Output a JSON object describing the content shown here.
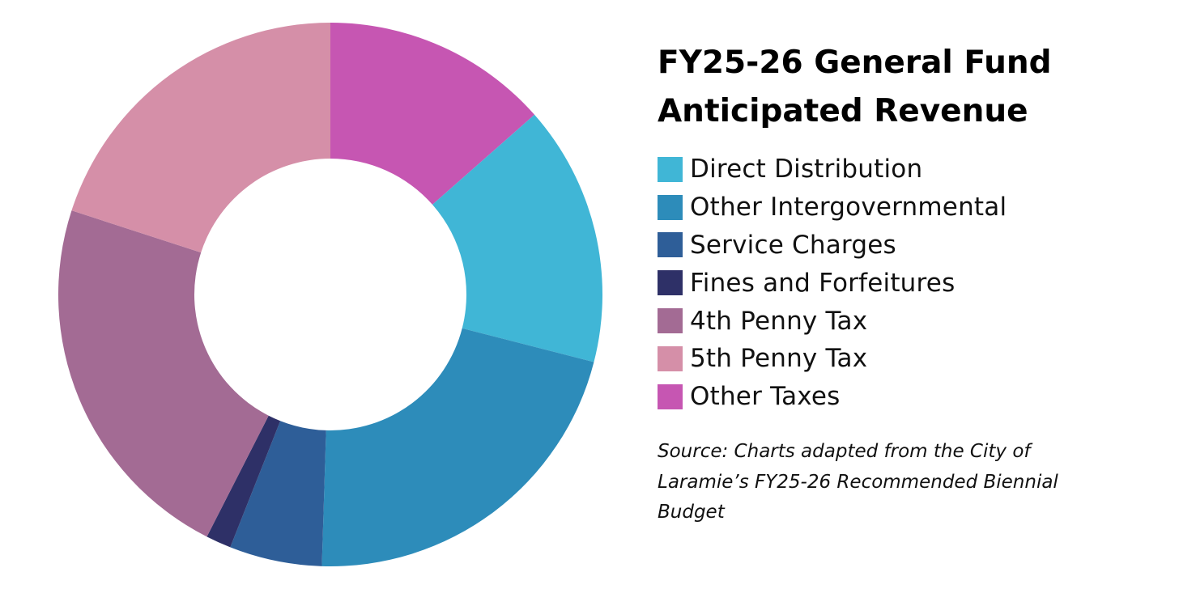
{
  "chart_data": {
    "type": "pie",
    "variant": "donut",
    "title": "FY25-26 General Fund Anticipated Revenue",
    "categories": [
      "Other Taxes",
      "Direct Distribution",
      "Other Intergovernmental",
      "Service Charges",
      "Fines and Forfeitures",
      "4th Penny Tax",
      "5th Penny Tax"
    ],
    "values": [
      13.5,
      15.5,
      21.5,
      5.5,
      1.5,
      22.5,
      20.0
    ],
    "unit": "% of total (estimated from slice angles)",
    "colors": [
      "#c656b2",
      "#40b6d6",
      "#2d8cba",
      "#2e5e98",
      "#2e3067",
      "#a36b94",
      "#d58fa8"
    ],
    "legend_order": [
      1,
      2,
      3,
      4,
      5,
      6,
      0
    ],
    "legend_position": "right"
  },
  "source": {
    "text": "Source: Charts adapted from the City of Laramie’s FY25-26 Recommended Biennial Budget"
  }
}
